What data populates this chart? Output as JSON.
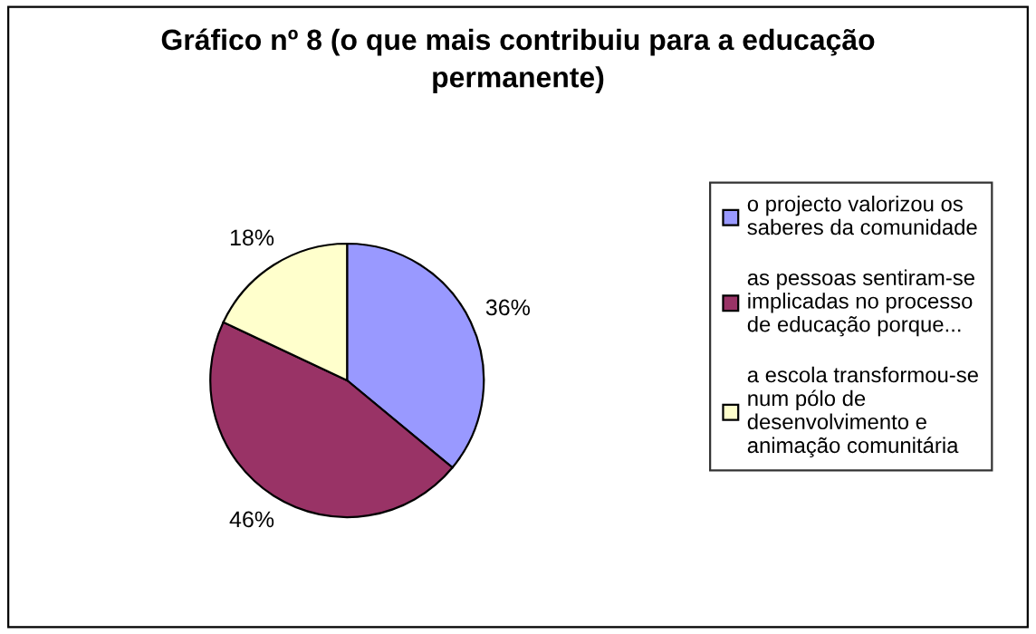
{
  "chart_data": {
    "type": "pie",
    "title": "Gráfico nº 8 (o que mais contribuiu para a educação\npermanente)",
    "categories": [
      "o projecto valorizou os\nsaberes da comunidade",
      "as pessoas sentiram-se\nimplicadas no processo\nde educação porque...",
      "a escola transformou-se\nnum pólo de\ndesenvolvimento e\nanimação comunitária"
    ],
    "values": [
      36,
      46,
      18
    ],
    "value_labels": [
      "36%",
      "46%",
      "18%"
    ],
    "colors": [
      "#9999ff",
      "#993366",
      "#ffffcc"
    ],
    "legend": "right"
  }
}
